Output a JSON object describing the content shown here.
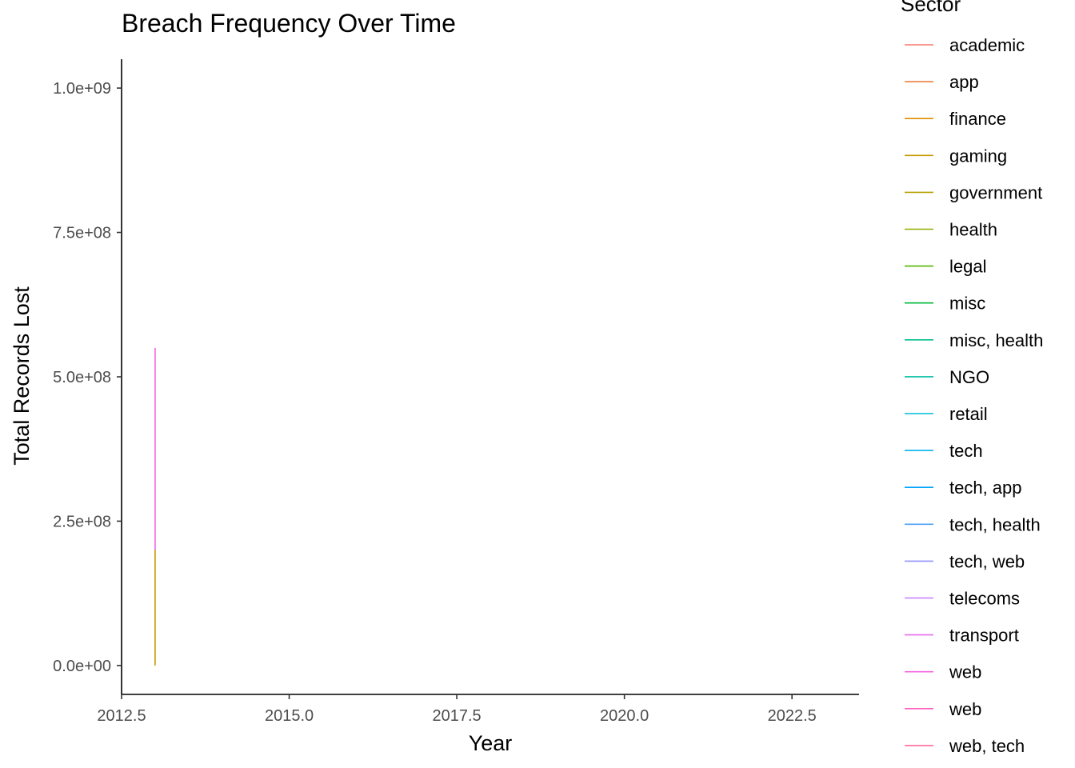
{
  "chart_data": {
    "type": "line",
    "title": "Breach Frequency Over Time",
    "xlabel": "Year",
    "ylabel": "Total Records Lost",
    "xlim": [
      2012.5,
      2023.5
    ],
    "ylim": [
      -50000000,
      1050000000
    ],
    "x_ticks": [
      2012.5,
      2015.0,
      2017.5,
      2020.0,
      2022.5
    ],
    "x_tick_labels": [
      "2012.5",
      "2015.0",
      "2017.5",
      "2020.0",
      "2022.5"
    ],
    "y_ticks": [
      0,
      250000000,
      500000000,
      750000000,
      1000000000
    ],
    "y_tick_labels": [
      "0.0e+00",
      "2.5e+08",
      "5.0e+08",
      "7.5e+08",
      "1.0e+09"
    ],
    "grid": false,
    "legend": {
      "title": "Sector",
      "placement": "right",
      "entries": [
        {
          "label": "academic",
          "color": "#F8766D"
        },
        {
          "label": "app",
          "color": "#EE8043"
        },
        {
          "label": "finance",
          "color": "#DD8D00"
        },
        {
          "label": "gaming",
          "color": "#C49A00"
        },
        {
          "label": "government",
          "color": "#B3A000"
        },
        {
          "label": "health",
          "color": "#92AA00"
        },
        {
          "label": "legal",
          "color": "#53B400"
        },
        {
          "label": "misc",
          "color": "#00BA38"
        },
        {
          "label": "misc, health",
          "color": "#00C08B"
        },
        {
          "label": "NGO",
          "color": "#00BFA4"
        },
        {
          "label": "retail",
          "color": "#00BCD8"
        },
        {
          "label": "tech",
          "color": "#00B4EF"
        },
        {
          "label": "tech, app",
          "color": "#00A5FF"
        },
        {
          "label": "tech, health",
          "color": "#4E9EF5"
        },
        {
          "label": "tech, web",
          "color": "#9590FF"
        },
        {
          "label": "telecoms",
          "color": "#C77CFF"
        },
        {
          "label": "transport",
          "color": "#E76BF3"
        },
        {
          "label": "web",
          "color": "#F564E3"
        },
        {
          "label": "web",
          "color": "#FF62BC"
        },
        {
          "label": "web, tech",
          "color": "#FF6A98"
        }
      ]
    },
    "series": [
      {
        "color": "#C49A00",
        "x": [
          2013,
          2013
        ],
        "y": [
          0,
          200000000
        ]
      },
      {
        "color": "#F564E3",
        "x": [
          2013,
          2013
        ],
        "y": [
          200000000,
          550000000
        ]
      }
    ]
  }
}
